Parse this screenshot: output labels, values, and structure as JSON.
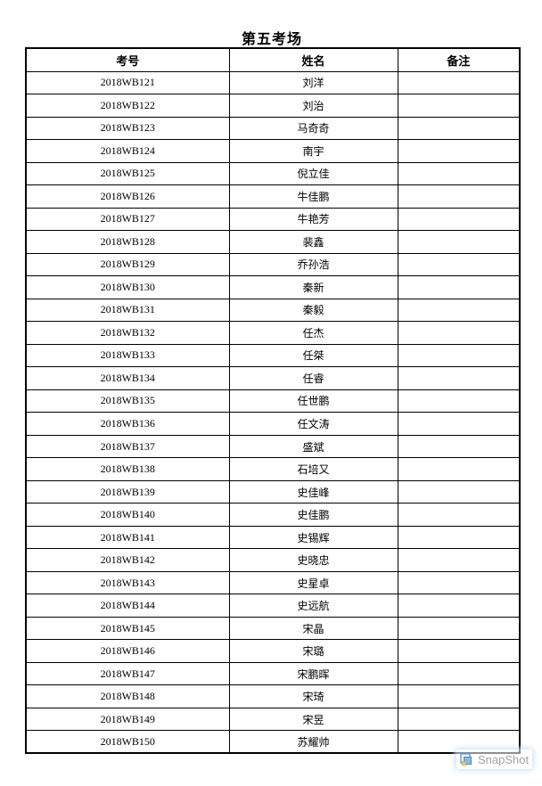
{
  "page": {
    "title": "第五考场"
  },
  "table": {
    "headers": [
      "考号",
      "姓名",
      "备注"
    ],
    "rows": [
      {
        "exam_no": "2018WB121",
        "name": "刘洋",
        "remark": ""
      },
      {
        "exam_no": "2018WB122",
        "name": "刘治",
        "remark": ""
      },
      {
        "exam_no": "2018WB123",
        "name": "马奇奇",
        "remark": ""
      },
      {
        "exam_no": "2018WB124",
        "name": "南宇",
        "remark": ""
      },
      {
        "exam_no": "2018WB125",
        "name": "倪立佳",
        "remark": ""
      },
      {
        "exam_no": "2018WB126",
        "name": "牛佳鹏",
        "remark": ""
      },
      {
        "exam_no": "2018WB127",
        "name": "牛艳芳",
        "remark": ""
      },
      {
        "exam_no": "2018WB128",
        "name": "裴鑫",
        "remark": ""
      },
      {
        "exam_no": "2018WB129",
        "name": "乔孙浩",
        "remark": ""
      },
      {
        "exam_no": "2018WB130",
        "name": "秦新",
        "remark": ""
      },
      {
        "exam_no": "2018WB131",
        "name": "秦毅",
        "remark": ""
      },
      {
        "exam_no": "2018WB132",
        "name": "任杰",
        "remark": ""
      },
      {
        "exam_no": "2018WB133",
        "name": "任桀",
        "remark": ""
      },
      {
        "exam_no": "2018WB134",
        "name": "任睿",
        "remark": ""
      },
      {
        "exam_no": "2018WB135",
        "name": "任世鹏",
        "remark": ""
      },
      {
        "exam_no": "2018WB136",
        "name": "任文涛",
        "remark": ""
      },
      {
        "exam_no": "2018WB137",
        "name": "盛斌",
        "remark": ""
      },
      {
        "exam_no": "2018WB138",
        "name": "石培又",
        "remark": ""
      },
      {
        "exam_no": "2018WB139",
        "name": "史佳峰",
        "remark": ""
      },
      {
        "exam_no": "2018WB140",
        "name": "史佳鹏",
        "remark": ""
      },
      {
        "exam_no": "2018WB141",
        "name": "史锡辉",
        "remark": ""
      },
      {
        "exam_no": "2018WB142",
        "name": "史晓忠",
        "remark": ""
      },
      {
        "exam_no": "2018WB143",
        "name": "史星卓",
        "remark": ""
      },
      {
        "exam_no": "2018WB144",
        "name": "史远航",
        "remark": ""
      },
      {
        "exam_no": "2018WB145",
        "name": "宋晶",
        "remark": ""
      },
      {
        "exam_no": "2018WB146",
        "name": "宋璐",
        "remark": ""
      },
      {
        "exam_no": "2018WB147",
        "name": "宋鹏晖",
        "remark": ""
      },
      {
        "exam_no": "2018WB148",
        "name": "宋琦",
        "remark": ""
      },
      {
        "exam_no": "2018WB149",
        "name": "宋昱",
        "remark": ""
      },
      {
        "exam_no": "2018WB150",
        "name": "苏耀帅",
        "remark": ""
      }
    ]
  },
  "watermark": {
    "label": "SnapShot"
  },
  "colors": {
    "table_border": "#000000",
    "watermark_text": "#a3a3a3",
    "watermark_glow": "#c8e4f6",
    "icon_blue": "#5b9bd5",
    "icon_blue_fill": "#8ab9e4",
    "icon_yellow": "#e6c97e"
  }
}
